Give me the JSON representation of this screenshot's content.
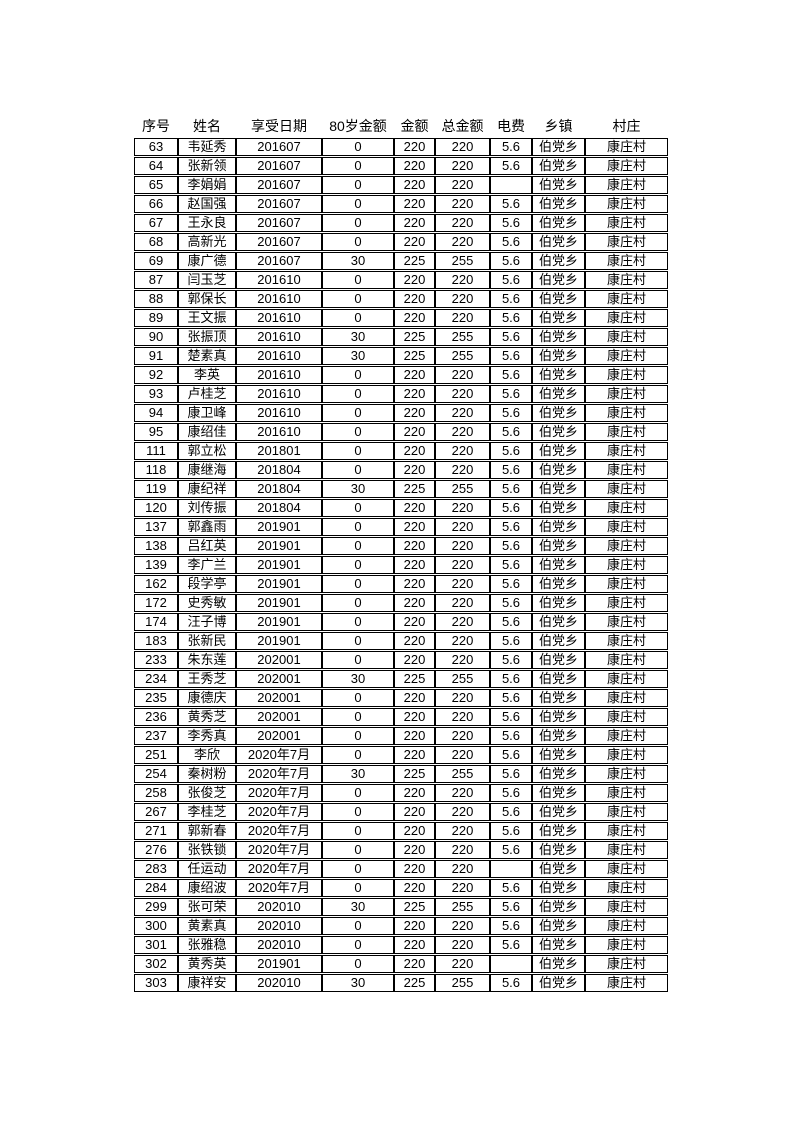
{
  "document": {
    "kind": "pension-roster-table",
    "background_color": "#ffffff",
    "text_color": "#000000",
    "border_color": "#000000"
  },
  "table": {
    "columns": [
      "序号",
      "姓名",
      "享受日期",
      "80岁金额",
      "金额",
      "总金额",
      "电费",
      "乡镇",
      "村庄"
    ],
    "rows": [
      [
        "63",
        "韦延秀",
        "201607",
        "0",
        "220",
        "220",
        "5.6",
        "伯党乡",
        "康庄村"
      ],
      [
        "64",
        "张新领",
        "201607",
        "0",
        "220",
        "220",
        "5.6",
        "伯党乡",
        "康庄村"
      ],
      [
        "65",
        "李娟娟",
        "201607",
        "0",
        "220",
        "220",
        "",
        "伯党乡",
        "康庄村"
      ],
      [
        "66",
        "赵国强",
        "201607",
        "0",
        "220",
        "220",
        "5.6",
        "伯党乡",
        "康庄村"
      ],
      [
        "67",
        "王永良",
        "201607",
        "0",
        "220",
        "220",
        "5.6",
        "伯党乡",
        "康庄村"
      ],
      [
        "68",
        "高新光",
        "201607",
        "0",
        "220",
        "220",
        "5.6",
        "伯党乡",
        "康庄村"
      ],
      [
        "69",
        "康广德",
        "201607",
        "30",
        "225",
        "255",
        "5.6",
        "伯党乡",
        "康庄村"
      ],
      [
        "87",
        "闫玉芝",
        "201610",
        "0",
        "220",
        "220",
        "5.6",
        "伯党乡",
        "康庄村"
      ],
      [
        "88",
        "郭保长",
        "201610",
        "0",
        "220",
        "220",
        "5.6",
        "伯党乡",
        "康庄村"
      ],
      [
        "89",
        "王文振",
        "201610",
        "0",
        "220",
        "220",
        "5.6",
        "伯党乡",
        "康庄村"
      ],
      [
        "90",
        "张振顶",
        "201610",
        "30",
        "225",
        "255",
        "5.6",
        "伯党乡",
        "康庄村"
      ],
      [
        "91",
        "楚素真",
        "201610",
        "30",
        "225",
        "255",
        "5.6",
        "伯党乡",
        "康庄村"
      ],
      [
        "92",
        "李英",
        "201610",
        "0",
        "220",
        "220",
        "5.6",
        "伯党乡",
        "康庄村"
      ],
      [
        "93",
        "卢桂芝",
        "201610",
        "0",
        "220",
        "220",
        "5.6",
        "伯党乡",
        "康庄村"
      ],
      [
        "94",
        "康卫峰",
        "201610",
        "0",
        "220",
        "220",
        "5.6",
        "伯党乡",
        "康庄村"
      ],
      [
        "95",
        "康绍佳",
        "201610",
        "0",
        "220",
        "220",
        "5.6",
        "伯党乡",
        "康庄村"
      ],
      [
        "111",
        "郭立松",
        "201801",
        "0",
        "220",
        "220",
        "5.6",
        "伯党乡",
        "康庄村"
      ],
      [
        "118",
        "康继海",
        "201804",
        "0",
        "220",
        "220",
        "5.6",
        "伯党乡",
        "康庄村"
      ],
      [
        "119",
        "康纪祥",
        "201804",
        "30",
        "225",
        "255",
        "5.6",
        "伯党乡",
        "康庄村"
      ],
      [
        "120",
        "刘传振",
        "201804",
        "0",
        "220",
        "220",
        "5.6",
        "伯党乡",
        "康庄村"
      ],
      [
        "137",
        "郭鑫雨",
        "201901",
        "0",
        "220",
        "220",
        "5.6",
        "伯党乡",
        "康庄村"
      ],
      [
        "138",
        "吕红英",
        "201901",
        "0",
        "220",
        "220",
        "5.6",
        "伯党乡",
        "康庄村"
      ],
      [
        "139",
        "李广兰",
        "201901",
        "0",
        "220",
        "220",
        "5.6",
        "伯党乡",
        "康庄村"
      ],
      [
        "162",
        "段学亭",
        "201901",
        "0",
        "220",
        "220",
        "5.6",
        "伯党乡",
        "康庄村"
      ],
      [
        "172",
        "史秀敏",
        "201901",
        "0",
        "220",
        "220",
        "5.6",
        "伯党乡",
        "康庄村"
      ],
      [
        "174",
        "汪子博",
        "201901",
        "0",
        "220",
        "220",
        "5.6",
        "伯党乡",
        "康庄村"
      ],
      [
        "183",
        "张新民",
        "201901",
        "0",
        "220",
        "220",
        "5.6",
        "伯党乡",
        "康庄村"
      ],
      [
        "233",
        "朱东莲",
        "202001",
        "0",
        "220",
        "220",
        "5.6",
        "伯党乡",
        "康庄村"
      ],
      [
        "234",
        "王秀芝",
        "202001",
        "30",
        "225",
        "255",
        "5.6",
        "伯党乡",
        "康庄村"
      ],
      [
        "235",
        "康德庆",
        "202001",
        "0",
        "220",
        "220",
        "5.6",
        "伯党乡",
        "康庄村"
      ],
      [
        "236",
        "黄秀芝",
        "202001",
        "0",
        "220",
        "220",
        "5.6",
        "伯党乡",
        "康庄村"
      ],
      [
        "237",
        "李秀真",
        "202001",
        "0",
        "220",
        "220",
        "5.6",
        "伯党乡",
        "康庄村"
      ],
      [
        "251",
        "李欣",
        "2020年7月",
        "0",
        "220",
        "220",
        "5.6",
        "伯党乡",
        "康庄村"
      ],
      [
        "254",
        "秦树粉",
        "2020年7月",
        "30",
        "225",
        "255",
        "5.6",
        "伯党乡",
        "康庄村"
      ],
      [
        "258",
        "张俊芝",
        "2020年7月",
        "0",
        "220",
        "220",
        "5.6",
        "伯党乡",
        "康庄村"
      ],
      [
        "267",
        "李桂芝",
        "2020年7月",
        "0",
        "220",
        "220",
        "5.6",
        "伯党乡",
        "康庄村"
      ],
      [
        "271",
        "郭新春",
        "2020年7月",
        "0",
        "220",
        "220",
        "5.6",
        "伯党乡",
        "康庄村"
      ],
      [
        "276",
        "张铁锁",
        "2020年7月",
        "0",
        "220",
        "220",
        "5.6",
        "伯党乡",
        "康庄村"
      ],
      [
        "283",
        "任运动",
        "2020年7月",
        "0",
        "220",
        "220",
        "",
        "伯党乡",
        "康庄村"
      ],
      [
        "284",
        "康绍波",
        "2020年7月",
        "0",
        "220",
        "220",
        "5.6",
        "伯党乡",
        "康庄村"
      ],
      [
        "299",
        "张可荣",
        "202010",
        "30",
        "225",
        "255",
        "5.6",
        "伯党乡",
        "康庄村"
      ],
      [
        "300",
        "黄素真",
        "202010",
        "0",
        "220",
        "220",
        "5.6",
        "伯党乡",
        "康庄村"
      ],
      [
        "301",
        "张雅稳",
        "202010",
        "0",
        "220",
        "220",
        "5.6",
        "伯党乡",
        "康庄村"
      ],
      [
        "302",
        "黄秀英",
        "201901",
        "0",
        "220",
        "220",
        "",
        "伯党乡",
        "康庄村"
      ],
      [
        "303",
        "康祥安",
        "202010",
        "30",
        "225",
        "255",
        "5.6",
        "伯党乡",
        "康庄村"
      ]
    ]
  }
}
